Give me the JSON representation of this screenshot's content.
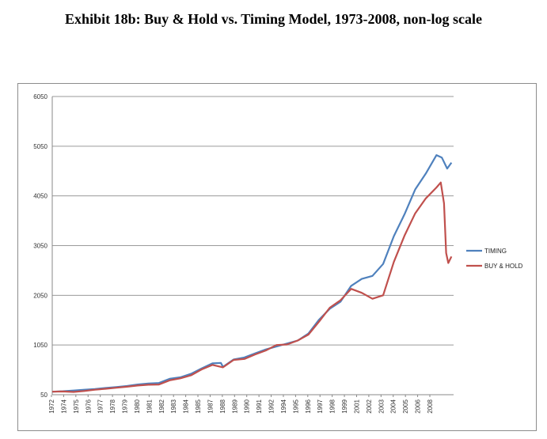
{
  "title": "Exhibit 18b: Buy & Hold vs. Timing Model, 1973-2008, non-log scale",
  "chart_data": {
    "type": "line",
    "title": "",
    "xlabel": "",
    "ylabel": "",
    "ylim": [
      50,
      6050
    ],
    "yticks": [
      50,
      1050,
      2050,
      3050,
      4050,
      5050,
      6050
    ],
    "xlim": [
      1972,
      2009.6
    ],
    "xticks": [
      "1972",
      "1974",
      "1975",
      "1976",
      "1977",
      "1978",
      "1979",
      "1980",
      "1981",
      "1982",
      "1983",
      "1984",
      "1985",
      "1987",
      "1988",
      "1989",
      "1990",
      "1991",
      "1992",
      "1994",
      "1995",
      "1996",
      "1997",
      "1998",
      "1999",
      "2001",
      "2002",
      "2003",
      "2004",
      "2005",
      "2006",
      "2008"
    ],
    "grid": "horizontal",
    "legend_position": "right",
    "colors": {
      "timing": "#4f81bd",
      "buyhold": "#c0504d"
    },
    "series": [
      {
        "name": "TIMING",
        "x": [
          1972,
          1973,
          1974,
          1975,
          1976,
          1977,
          1978,
          1979,
          1980,
          1981,
          1982,
          1983,
          1984,
          1985,
          1986,
          1987,
          1987.8,
          1988,
          1989,
          1990,
          1991,
          1992,
          1993,
          1994,
          1995,
          1996,
          1997,
          1998,
          1999,
          2000,
          2001,
          2002,
          2003,
          2004,
          2005,
          2006,
          2007,
          2008.0,
          2008.5,
          2009.0,
          2009.4
        ],
        "y": [
          110,
          120,
          135,
          150,
          165,
          185,
          205,
          225,
          255,
          275,
          285,
          370,
          400,
          470,
          580,
          680,
          690,
          610,
          760,
          800,
          880,
          960,
          1020,
          1080,
          1140,
          1280,
          1560,
          1780,
          1920,
          2240,
          2380,
          2440,
          2680,
          3240,
          3680,
          4180,
          4500,
          4870,
          4820,
          4600,
          4720
        ]
      },
      {
        "name": "BUY & HOLD",
        "x": [
          1972,
          1973,
          1974,
          1975,
          1976,
          1977,
          1978,
          1979,
          1980,
          1981,
          1982,
          1983,
          1984,
          1985,
          1986,
          1987,
          1987.8,
          1988,
          1989,
          1990,
          1991,
          1992,
          1993,
          1994,
          1995,
          1996,
          1997,
          1998,
          1999,
          2000,
          2001,
          2002,
          2003,
          2004,
          2005,
          2006,
          2007,
          2008.0,
          2008.4,
          2008.7,
          2008.9,
          2009.1,
          2009.4
        ],
        "y": [
          110,
          115,
          105,
          125,
          150,
          170,
          190,
          210,
          235,
          250,
          255,
          340,
          380,
          440,
          560,
          650,
          610,
          600,
          750,
          770,
          860,
          940,
          1050,
          1060,
          1140,
          1260,
          1520,
          1800,
          1950,
          2180,
          2100,
          1980,
          2050,
          2720,
          3250,
          3700,
          4000,
          4220,
          4320,
          3900,
          2900,
          2700,
          2830
        ]
      }
    ]
  }
}
